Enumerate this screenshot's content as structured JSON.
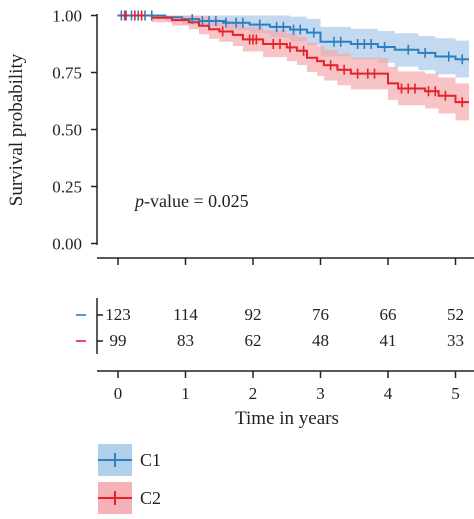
{
  "chart_data": {
    "type": "line",
    "subtype": "kaplan-meier",
    "ylabel": "Survival probability",
    "xlabel": "Time in years",
    "ylim": [
      0,
      1
    ],
    "xlim": [
      0,
      5.2
    ],
    "yticks": [
      "0.00",
      "0.25",
      "0.50",
      "0.75",
      "1.00"
    ],
    "xticks": [
      "0",
      "1",
      "2",
      "3",
      "4",
      "5"
    ],
    "annotation": {
      "italic": "p",
      "rest": "-value = 0.025"
    },
    "series": [
      {
        "name": "C1",
        "color": "#2e7fc2",
        "band_color": "#a9c9e8",
        "steps": [
          [
            0,
            1.0
          ],
          [
            0.7,
            0.992
          ],
          [
            0.95,
            0.984
          ],
          [
            1.2,
            0.976
          ],
          [
            1.6,
            0.968
          ],
          [
            1.95,
            0.96
          ],
          [
            2.25,
            0.95
          ],
          [
            2.55,
            0.938
          ],
          [
            2.8,
            0.925
          ],
          [
            3.0,
            0.885
          ],
          [
            3.45,
            0.875
          ],
          [
            3.85,
            0.862
          ],
          [
            4.1,
            0.85
          ],
          [
            4.45,
            0.836
          ],
          [
            4.7,
            0.82
          ],
          [
            5.0,
            0.808
          ],
          [
            5.2,
            0.808
          ]
        ],
        "band_upper": [
          1.0,
          1.0,
          1.0,
          1.0,
          1.0,
          1.0,
          1.0,
          0.995,
          0.985,
          0.95,
          0.942,
          0.932,
          0.922,
          0.91,
          0.9,
          0.89,
          0.89
        ],
        "band_lower": [
          1.0,
          0.975,
          0.962,
          0.95,
          0.936,
          0.922,
          0.904,
          0.886,
          0.87,
          0.82,
          0.808,
          0.792,
          0.776,
          0.76,
          0.742,
          0.728,
          0.728
        ],
        "censor_x": [
          0.05,
          0.12,
          0.2,
          0.3,
          0.4,
          0.5,
          1.1,
          1.25,
          1.35,
          1.45,
          1.6,
          1.75,
          1.85,
          2.1,
          2.35,
          2.45,
          2.6,
          2.7,
          2.9,
          3.2,
          3.3,
          3.55,
          3.65,
          3.75,
          3.95,
          4.3,
          4.55,
          4.9,
          5.1
        ]
      },
      {
        "name": "C2",
        "color": "#e8202a",
        "band_color": "#f4a9ad",
        "steps": [
          [
            0,
            1.0
          ],
          [
            0.5,
            0.99
          ],
          [
            0.8,
            0.98
          ],
          [
            1.05,
            0.97
          ],
          [
            1.2,
            0.955
          ],
          [
            1.35,
            0.94
          ],
          [
            1.5,
            0.93
          ],
          [
            1.7,
            0.915
          ],
          [
            1.85,
            0.895
          ],
          [
            2.15,
            0.875
          ],
          [
            2.5,
            0.86
          ],
          [
            2.65,
            0.845
          ],
          [
            2.8,
            0.815
          ],
          [
            2.95,
            0.8
          ],
          [
            3.05,
            0.782
          ],
          [
            3.25,
            0.762
          ],
          [
            3.45,
            0.745
          ],
          [
            3.9,
            0.745
          ],
          [
            4.0,
            0.702
          ],
          [
            4.15,
            0.68
          ],
          [
            4.55,
            0.668
          ],
          [
            4.75,
            0.648
          ],
          [
            5.0,
            0.62
          ],
          [
            5.2,
            0.62
          ]
        ],
        "band_upper": [
          1.0,
          1.0,
          1.0,
          1.0,
          0.995,
          0.985,
          0.978,
          0.965,
          0.95,
          0.935,
          0.92,
          0.907,
          0.882,
          0.867,
          0.85,
          0.832,
          0.815,
          0.815,
          0.775,
          0.755,
          0.745,
          0.728,
          0.702,
          0.702
        ],
        "band_lower": [
          1.0,
          0.97,
          0.955,
          0.94,
          0.918,
          0.898,
          0.885,
          0.866,
          0.842,
          0.818,
          0.8,
          0.783,
          0.752,
          0.735,
          0.715,
          0.694,
          0.676,
          0.676,
          0.63,
          0.606,
          0.592,
          0.57,
          0.54,
          0.54
        ],
        "censor_x": [
          0.1,
          0.25,
          0.35,
          1.55,
          1.95,
          2.0,
          2.05,
          2.3,
          2.4,
          2.55,
          2.75,
          3.15,
          3.35,
          3.55,
          3.7,
          3.8,
          4.2,
          4.3,
          4.4,
          4.6,
          4.7,
          4.85,
          5.1
        ]
      }
    ],
    "risk_table": {
      "x": [
        0,
        1,
        2,
        3,
        4,
        5
      ],
      "rows": [
        {
          "name": "C1",
          "values": [
            "123",
            "114",
            "92",
            "76",
            "66",
            "52"
          ]
        },
        {
          "name": "C2",
          "values": [
            "99",
            "83",
            "62",
            "48",
            "41",
            "33"
          ]
        }
      ]
    },
    "legend": {
      "placement": "bottom-left",
      "items": [
        "C1",
        "C2"
      ]
    }
  }
}
